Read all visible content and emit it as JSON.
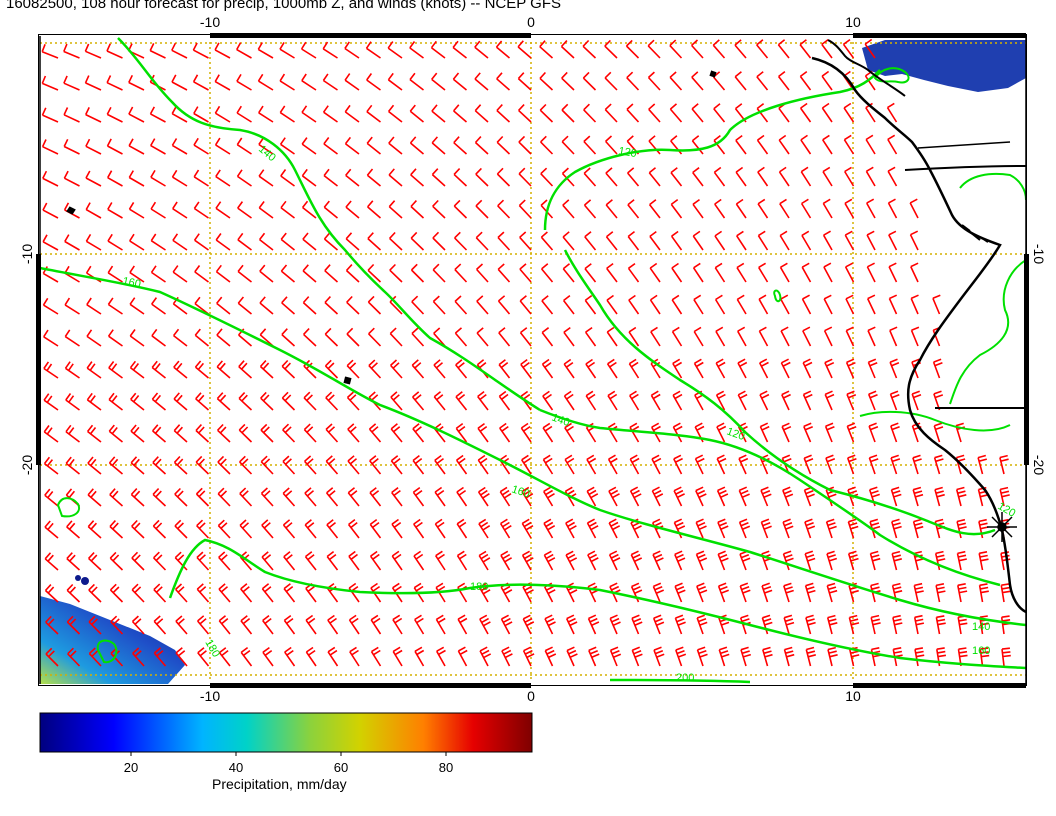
{
  "title": "16082500, 108 hour forecast for precip, 1000mb Z, and winds (knots) -- NCEP GFS",
  "map": {
    "x_ticks": [
      "-10",
      "0",
      "10"
    ],
    "y_ticks": [
      "-10",
      "-20"
    ],
    "contour_labels": [
      "140",
      "120",
      "160",
      "140",
      "120",
      "160",
      "180",
      "140",
      "160",
      "120",
      "180",
      "200"
    ],
    "colors": {
      "frame": "#000000",
      "grid": "#d4b000",
      "barb": "#ff0000",
      "contour": "#00e000",
      "coast": "#000000",
      "precip_low": "#0d1a8c"
    }
  },
  "colorbar": {
    "label": "Precipitation, mm/day",
    "ticks": [
      "20",
      "40",
      "60",
      "80"
    ],
    "colors": [
      "#00007f",
      "#0000ff",
      "#007fff",
      "#00d2d2",
      "#7fd23c",
      "#d2d200",
      "#ff7f00",
      "#e60000",
      "#7f0000"
    ]
  }
}
